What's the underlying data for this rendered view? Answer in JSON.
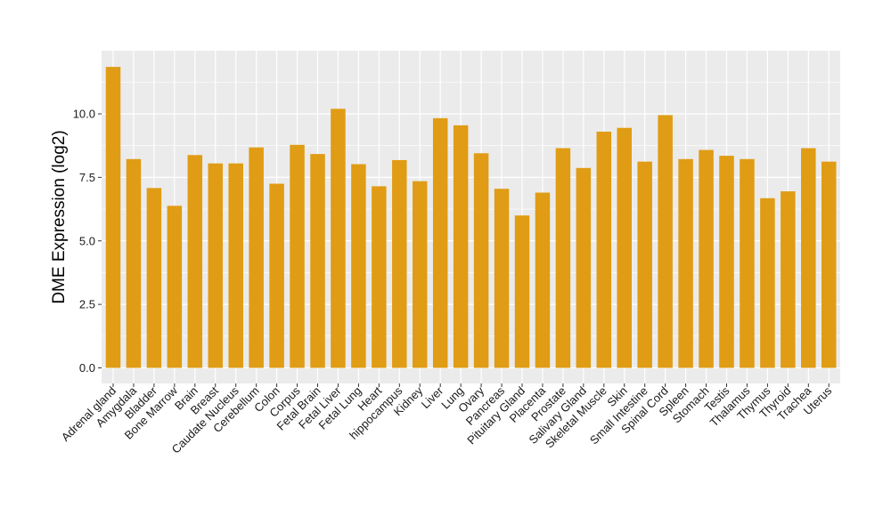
{
  "chart_data": {
    "type": "bar",
    "xlabel": "",
    "ylabel": "DME Expression (log2)",
    "ylim": [
      -0.5,
      12.5
    ],
    "yticks": [
      0.0,
      2.5,
      5.0,
      7.5,
      10.0
    ],
    "ytick_labels": [
      "0.0",
      "2.5",
      "5.0",
      "7.5",
      "10.0"
    ],
    "grid": true,
    "bar_color": "#e09c14",
    "panel_background": "#ebebeb",
    "grid_color": "#ffffff",
    "categories": [
      "Adrenal gland",
      "Amygdala",
      "Bladder",
      "Bone Marrow",
      "Brain",
      "Breast",
      "Caudate Nucleus",
      "Cerebellum",
      "Colon",
      "Corpus",
      "Fetal Brain",
      "Fetal Liver",
      "Fetal Lung",
      "Heart",
      "hippocampus",
      "Kidney",
      "Liver",
      "Lung",
      "Ovary",
      "Pancreas",
      "Pituitary Gland",
      "Placenta",
      "Prostate",
      "Salivary Gland",
      "Skeletal Muscle",
      "Skin",
      "Small Intestine",
      "Spinal Cord",
      "Spleen",
      "Stomach",
      "Testis",
      "Thalamus",
      "Thymus",
      "Thyroid",
      "Trachea",
      "Uterus"
    ],
    "values": [
      11.85,
      8.22,
      7.08,
      6.38,
      8.38,
      8.05,
      8.05,
      8.68,
      7.25,
      8.78,
      8.42,
      10.2,
      8.02,
      7.15,
      8.18,
      7.35,
      9.83,
      9.55,
      8.45,
      7.05,
      6.0,
      6.9,
      8.65,
      7.87,
      9.3,
      9.45,
      8.12,
      9.95,
      8.22,
      8.58,
      8.35,
      8.22,
      6.68,
      6.95,
      8.65,
      8.12
    ]
  }
}
